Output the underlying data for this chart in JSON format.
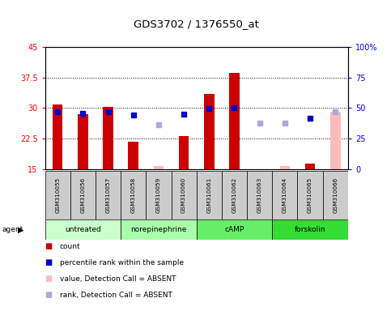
{
  "title": "GDS3702 / 1376550_at",
  "samples": [
    "GSM310055",
    "GSM310056",
    "GSM310057",
    "GSM310058",
    "GSM310059",
    "GSM310060",
    "GSM310061",
    "GSM310062",
    "GSM310063",
    "GSM310064",
    "GSM310065",
    "GSM310066"
  ],
  "count_values": [
    30.8,
    28.6,
    30.2,
    21.8,
    null,
    23.2,
    33.5,
    38.5,
    null,
    null,
    16.5,
    null
  ],
  "count_absent_values": [
    null,
    null,
    null,
    null,
    15.8,
    null,
    null,
    null,
    15.0,
    15.8,
    null,
    29.0
  ],
  "rank_values": [
    29.0,
    28.7,
    29.0,
    28.3,
    null,
    28.5,
    29.9,
    30.0,
    null,
    null,
    27.5,
    null
  ],
  "rank_absent_values": [
    null,
    null,
    null,
    null,
    26.0,
    null,
    null,
    null,
    26.3,
    26.3,
    null,
    29.0
  ],
  "agent_groups": [
    {
      "label": "untreated",
      "start": 0,
      "end": 3,
      "color": "#ccffcc"
    },
    {
      "label": "norepinephrine",
      "start": 3,
      "end": 6,
      "color": "#aaffaa"
    },
    {
      "label": "cAMP",
      "start": 6,
      "end": 9,
      "color": "#66ee66"
    },
    {
      "label": "forskolin",
      "start": 9,
      "end": 12,
      "color": "#33dd33"
    }
  ],
  "ylim": [
    15,
    45
  ],
  "y2lim": [
    0,
    100
  ],
  "yticks": [
    15,
    22.5,
    30,
    37.5,
    45
  ],
  "y2ticks": [
    0,
    25,
    50,
    75,
    100
  ],
  "ytick_labels": [
    "15",
    "22.5",
    "30",
    "37.5",
    "45"
  ],
  "y2tick_labels": [
    "0",
    "25",
    "50",
    "75",
    "100%"
  ],
  "hlines": [
    22.5,
    30,
    37.5
  ],
  "bar_color": "#cc0000",
  "bar_absent_color": "#ffbbbb",
  "rank_color": "#0000cc",
  "rank_absent_color": "#aaaadd",
  "sample_box_color": "#cccccc",
  "plot_bg": "#ffffff",
  "bar_width": 0.4,
  "rank_markersize": 5,
  "legend_items": [
    {
      "color": "#cc0000",
      "label": "count"
    },
    {
      "color": "#0000cc",
      "label": "percentile rank within the sample"
    },
    {
      "color": "#ffbbbb",
      "label": "value, Detection Call = ABSENT"
    },
    {
      "color": "#aaaadd",
      "label": "rank, Detection Call = ABSENT"
    }
  ]
}
